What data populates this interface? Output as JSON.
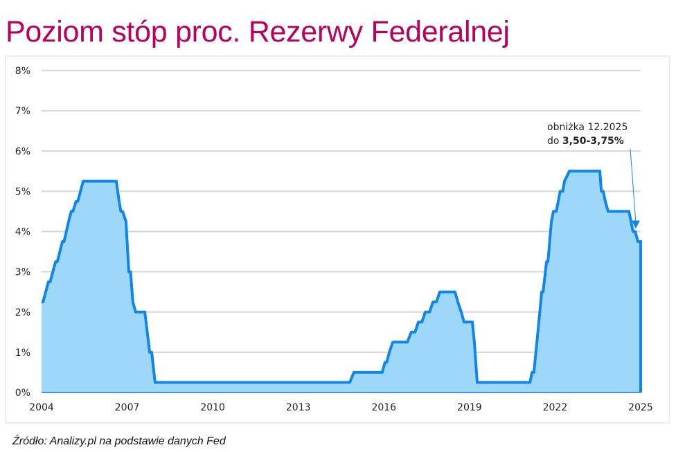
{
  "title": "Poziom stóp proc. Rezerwy Federalnej",
  "source": "Źródło: Analizy.pl na podstawie danych Fed",
  "colors": {
    "title": "#b8005c",
    "line": "#1185e8",
    "fill": "#9dd8fa",
    "grid": "#d6d6d6"
  },
  "chart_data": {
    "type": "area",
    "title": "Poziom stóp proc. Rezerwy Federalnej",
    "xlabel": "",
    "ylabel": "",
    "xlim": [
      2004,
      2025
    ],
    "ylim": [
      0,
      8
    ],
    "grid": true,
    "x_ticks": [
      "2004",
      "2007",
      "2010",
      "2013",
      "2016",
      "2019",
      "2022",
      "2025"
    ],
    "y_ticks": [
      "0%",
      "1%",
      "2%",
      "3%",
      "4%",
      "5%",
      "6%",
      "7%",
      "8%"
    ],
    "annotation": {
      "line1": "obniżka 12.2025",
      "line2_prefix": "do ",
      "line2_bold": "3,50-3,75%",
      "x": 2024.9,
      "y": 4.0
    },
    "x": [
      2004.0,
      2004.05,
      2004.24,
      2004.3,
      2004.49,
      2004.55,
      2004.73,
      2004.79,
      2004.95,
      2005.04,
      2005.1,
      2005.21,
      2005.27,
      2005.46,
      2006.62,
      2006.72,
      2006.78,
      2006.84,
      2006.96,
      2007.06,
      2007.12,
      2007.2,
      2007.3,
      2007.62,
      2007.79,
      2007.86,
      2007.98,
      2014.8,
      2014.95,
      2015.94,
      2016.04,
      2016.1,
      2016.19,
      2016.31,
      2016.82,
      2016.96,
      2017.09,
      2017.21,
      2017.33,
      2017.45,
      2017.6,
      2017.72,
      2017.84,
      2017.96,
      2018.49,
      2018.59,
      2018.71,
      2018.81,
      2019.1,
      2019.17,
      2019.27,
      2021.12,
      2021.19,
      2021.26,
      2021.43,
      2021.53,
      2021.58,
      2021.7,
      2021.75,
      2021.87,
      2021.94,
      2022.04,
      2022.11,
      2022.18,
      2022.27,
      2022.33,
      2022.5,
      2023.57,
      2023.62,
      2023.69,
      2023.76,
      2023.86,
      2023.93,
      2024.59,
      2024.66,
      2024.73,
      2024.81,
      2024.9,
      2025.0
    ],
    "y": [
      2.25,
      2.25,
      2.75,
      2.75,
      3.25,
      3.25,
      3.75,
      3.75,
      4.25,
      4.5,
      4.5,
      4.75,
      4.75,
      5.25,
      5.25,
      4.75,
      4.5,
      4.5,
      4.25,
      3.0,
      3.0,
      2.25,
      2.0,
      2.0,
      1.0,
      1.0,
      0.25,
      0.25,
      0.5,
      0.5,
      0.75,
      0.75,
      1.0,
      1.25,
      1.25,
      1.5,
      1.5,
      1.75,
      1.75,
      2.0,
      2.0,
      2.25,
      2.25,
      2.5,
      2.5,
      2.25,
      2.0,
      1.75,
      1.75,
      1.25,
      0.25,
      0.25,
      0.5,
      0.5,
      1.75,
      2.5,
      2.5,
      3.25,
      3.25,
      4.25,
      4.5,
      4.5,
      4.75,
      5.0,
      5.0,
      5.25,
      5.5,
      5.5,
      5.0,
      5.0,
      4.75,
      4.5,
      4.5,
      4.5,
      4.25,
      4.0,
      4.0,
      3.75,
      3.75
    ]
  }
}
